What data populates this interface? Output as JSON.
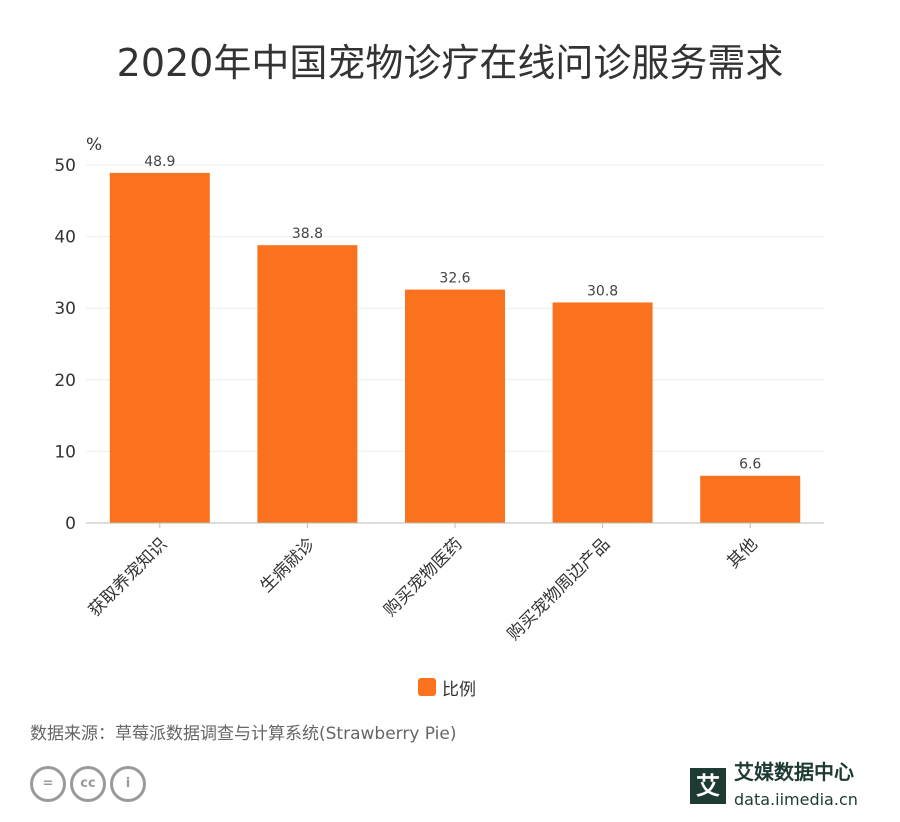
{
  "chart_data": {
    "type": "bar",
    "title": "2020年中国宠物诊疗在线问诊服务需求",
    "ylabel": "%",
    "categories": [
      "获取养宠知识",
      "生病就诊",
      "购买宠物医药",
      "购买宠物周边产品",
      "其他"
    ],
    "series": [
      {
        "name": "比例",
        "values": [
          48.9,
          38.8,
          32.6,
          30.8,
          6.6
        ],
        "color": "#fa721e"
      }
    ],
    "ylim": [
      0,
      50
    ],
    "yticks": [
      0,
      10,
      20,
      30,
      40,
      50
    ],
    "grid": true,
    "legend": "bottom"
  },
  "source": "数据来源：草莓派数据调查与计算系统(Strawberry Pie)",
  "license_icons": [
    "equals-icon",
    "cc-icon",
    "person-icon"
  ],
  "logo": {
    "name": "艾媒数据中心",
    "url": "data.iimedia.cn",
    "mark": "艾"
  }
}
